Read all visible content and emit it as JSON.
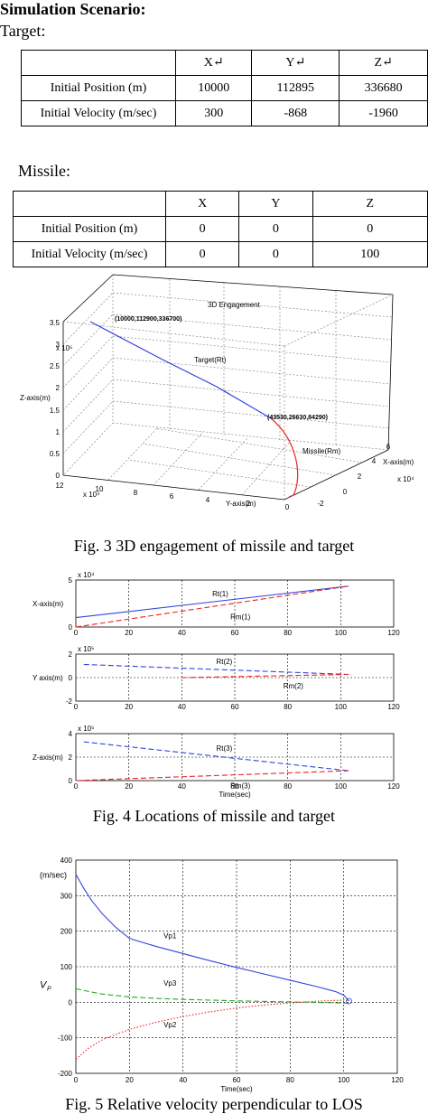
{
  "heading": "Simulation Scenario:",
  "target": {
    "label": "Target:",
    "table": {
      "headers": [
        "X↵",
        "Y↵",
        "Z↵"
      ],
      "rows": [
        {
          "label": "Initial Position (m)",
          "x": "10000",
          "y": "112895",
          "z": "336680"
        },
        {
          "label": "Initial Velocity (m/sec)",
          "x": "300",
          "y": "-868",
          "z": "-1960"
        }
      ]
    }
  },
  "missile": {
    "label": "Missile:",
    "table": {
      "headers": [
        "X",
        "Y",
        "Z"
      ],
      "rows": [
        {
          "label": "Initial Position (m)",
          "x": "0",
          "y": "0",
          "z": "0"
        },
        {
          "label": "Initial Velocity (m/sec)",
          "x": "0",
          "y": "0",
          "z": "100"
        }
      ]
    }
  },
  "figure3": {
    "caption": "Fig. 3 3D engagement of missile and target",
    "chart_data": {
      "type": "line",
      "title": "3D Engagement",
      "xlabel": "X-axis(m)",
      "ylabel": "Y-axis(m)",
      "zlabel": "Z-axis(m)",
      "x_multiplier": "x 10⁴",
      "y_multiplier": "x 10⁴",
      "z_multiplier": "x 10⁵",
      "x_ticks": [
        "-2",
        "0",
        "2",
        "4",
        "6"
      ],
      "y_ticks": [
        "12",
        "10",
        "8",
        "6",
        "4",
        "2",
        "0"
      ],
      "z_ticks": [
        "0",
        "0.5",
        "1",
        "1.5",
        "2",
        "2.5",
        "3",
        "3.5"
      ],
      "series": [
        {
          "name": "Target(Rt)",
          "color": "#3344dd",
          "style": "solid"
        },
        {
          "name": "Missile(Rm)",
          "color": "#ee2222",
          "style": "solid"
        }
      ],
      "annotations": [
        "(10000,112900,336700)",
        "(43530,26630,84290)"
      ]
    }
  },
  "figure4": {
    "caption": "Fig. 4 Locations of missile and target",
    "chart_data": [
      {
        "type": "line",
        "ylabel": "X-axis(m)",
        "multiplier": "x 10⁴",
        "xlim": [
          0,
          120
        ],
        "ylim": [
          0,
          5
        ],
        "x_ticks": [
          "0",
          "20",
          "40",
          "60",
          "80",
          "100",
          "120"
        ],
        "y_ticks": [
          "0",
          "5"
        ],
        "series": [
          {
            "name": "Rt(1)",
            "color": "#3344dd",
            "style": "solid",
            "x": [
              0,
              103
            ],
            "y": [
              1.0,
              4.35
            ]
          },
          {
            "name": "Rm(1)",
            "color": "#ee2222",
            "style": "dashed",
            "x": [
              0,
              103
            ],
            "y": [
              0.0,
              4.35
            ]
          }
        ]
      },
      {
        "type": "line",
        "ylabel": "Y axis(m)",
        "multiplier": "x 10⁵",
        "xlim": [
          0,
          120
        ],
        "ylim": [
          -2,
          2
        ],
        "x_ticks": [
          "0",
          "20",
          "40",
          "60",
          "80",
          "100",
          "120"
        ],
        "y_ticks": [
          "-2",
          "0",
          "2"
        ],
        "series": [
          {
            "name": "Rt(2)",
            "color": "#3344dd",
            "style": "dashed",
            "x": [
              3,
              103
            ],
            "y": [
              1.12,
              0.27
            ]
          },
          {
            "name": "Rm(2)",
            "color": "#ee2222",
            "style": "dashed",
            "x": [
              40,
              103
            ],
            "y": [
              0.0,
              0.27
            ]
          }
        ]
      },
      {
        "type": "line",
        "xlabel": "Time(sec)",
        "ylabel": "Z-axis(m)",
        "multiplier": "x 10⁵",
        "xlim": [
          0,
          120
        ],
        "ylim": [
          0,
          4
        ],
        "x_ticks": [
          "0",
          "20",
          "40",
          "60",
          "80",
          "100",
          "120"
        ],
        "y_ticks": [
          "0",
          "2",
          "4"
        ],
        "series": [
          {
            "name": "Rt(3)",
            "color": "#3344dd",
            "style": "dashed",
            "x": [
              3,
              103
            ],
            "y": [
              3.3,
              0.84
            ]
          },
          {
            "name": "Rm(3)",
            "color": "#ee2222",
            "style": "dashed",
            "x": [
              0,
              103
            ],
            "y": [
              0.0,
              0.84
            ]
          }
        ]
      }
    ]
  },
  "figure5": {
    "caption": "Fig. 5 Relative velocity perpendicular to LOS",
    "chart_data": {
      "type": "line",
      "xlabel": "Time(sec)",
      "ylabel": "V",
      "ylabel_sub": "P",
      "unit_label": "(m/sec)",
      "xlim": [
        0,
        120
      ],
      "ylim": [
        -200,
        400
      ],
      "x_ticks": [
        0,
        20,
        40,
        60,
        80,
        100,
        120
      ],
      "y_ticks": [
        -200,
        -100,
        0,
        100,
        200,
        300,
        400
      ],
      "grid": true,
      "series": [
        {
          "name": "Vp1",
          "color": "#3344dd",
          "style": "solid",
          "x": [
            0,
            3,
            6,
            10,
            15,
            20,
            22,
            30,
            40,
            50,
            60,
            70,
            80,
            90,
            97,
            100,
            102
          ],
          "y": [
            360,
            320,
            285,
            248,
            210,
            180,
            175,
            157,
            137,
            117,
            98,
            80,
            62,
            44,
            30,
            20,
            3
          ]
        },
        {
          "name": "Vp3",
          "color": "#22aa22",
          "style": "dashed",
          "x": [
            0,
            5,
            10,
            20,
            30,
            40,
            60,
            80,
            100,
            102
          ],
          "y": [
            38,
            30,
            23,
            15,
            11,
            8,
            4,
            1,
            -2,
            -3
          ]
        },
        {
          "name": "Vp2",
          "color": "#ee2222",
          "style": "dotted",
          "x": [
            0,
            5,
            10,
            20,
            30,
            40,
            50,
            60,
            70,
            80,
            90,
            100,
            102
          ],
          "y": [
            -160,
            -128,
            -105,
            -76,
            -56,
            -40,
            -27,
            -16,
            -8,
            -2,
            3,
            6,
            6
          ]
        }
      ]
    }
  }
}
